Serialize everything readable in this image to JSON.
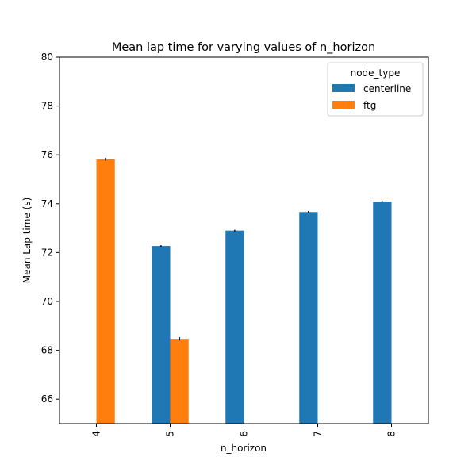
{
  "chart_data": {
    "type": "bar",
    "title": "Mean lap time for varying values of n_horizon",
    "xlabel": "n_horizon",
    "ylabel": "Mean Lap time (s)",
    "categories": [
      "4",
      "5",
      "6",
      "7",
      "8"
    ],
    "ylim": [
      65,
      80
    ],
    "yticks": [
      66,
      68,
      70,
      72,
      74,
      76,
      78,
      80
    ],
    "legend": {
      "title": "node_type",
      "placement": "top-right"
    },
    "grid": false,
    "series": [
      {
        "name": "centerline",
        "color": "#1f77b4",
        "values": [
          null,
          72.27,
          72.9,
          73.66,
          74.09
        ],
        "errors": [
          null,
          0.03,
          0.03,
          0.04,
          0.02
        ]
      },
      {
        "name": "ftg",
        "color": "#ff7f0e",
        "values": [
          75.82,
          68.47,
          null,
          null,
          null
        ],
        "errors": [
          0.06,
          0.07,
          null,
          null,
          null
        ]
      }
    ]
  }
}
